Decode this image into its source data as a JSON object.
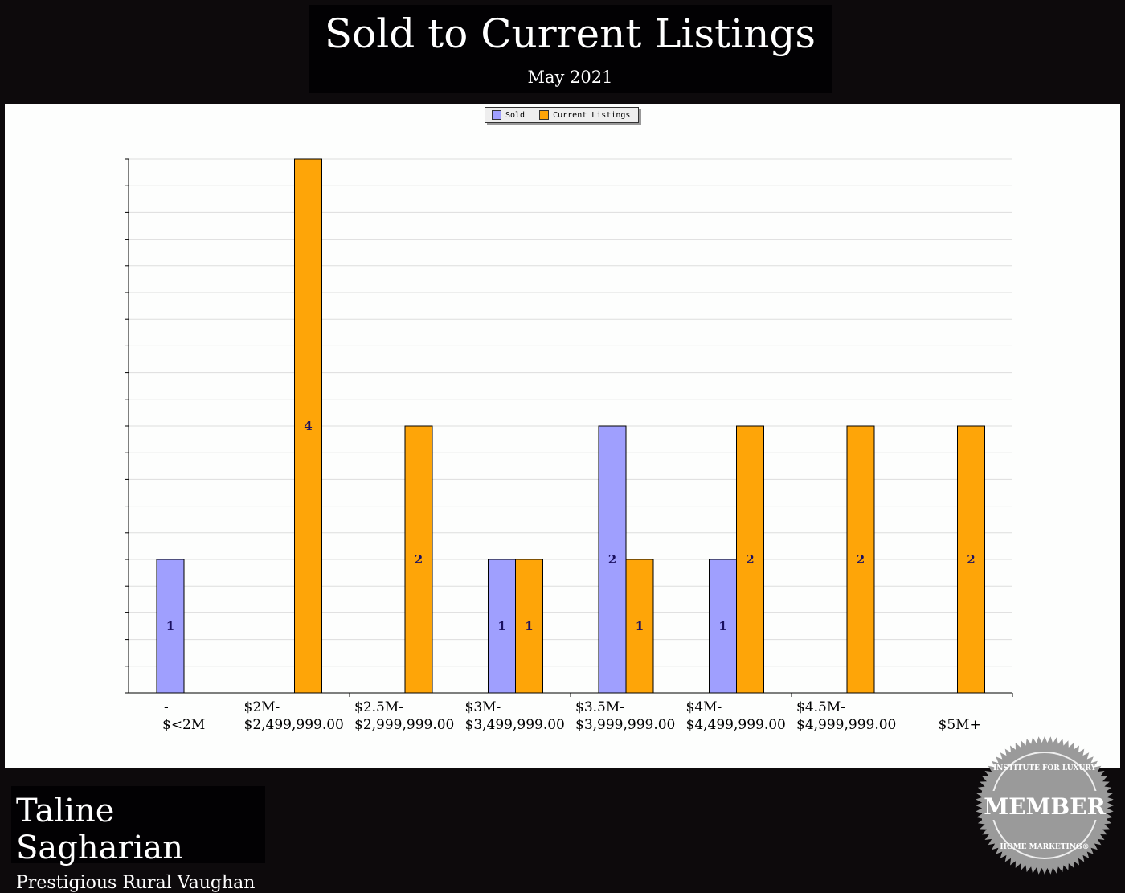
{
  "header": {
    "title": "Sold to Current Listings",
    "subtitle": "May 2021"
  },
  "footer": {
    "agent_name": "Taline Sagharian",
    "area": "Prestigious Rural Vaughan"
  },
  "badge": {
    "top_text": "INSTITUTE FOR LUXURY",
    "main_text": "MEMBER",
    "bottom_text": "HOME MARKETING®"
  },
  "chart_data": {
    "type": "bar",
    "title": "Sold to Current Listings",
    "subtitle": "May 2021",
    "categories": [
      [
        "-",
        "$<2M"
      ],
      [
        "$2M-",
        "$2,499,999.00"
      ],
      [
        "$2.5M-",
        "$2,999,999.00"
      ],
      [
        "$3M-",
        "$3,499,999.00"
      ],
      [
        "$3.5M-",
        "$3,999,999.00"
      ],
      [
        "$4M-",
        "$4,499,999.00"
      ],
      [
        "$4.5M-",
        "$4,999,999.00"
      ],
      [
        "",
        "$5M+"
      ]
    ],
    "series": [
      {
        "name": "Sold",
        "color": "#9f9ffe",
        "values": [
          1,
          0,
          0,
          1,
          2,
          1,
          0,
          0
        ]
      },
      {
        "name": "Current Listings",
        "color": "#fea508",
        "values": [
          0,
          4,
          2,
          1,
          1,
          2,
          2,
          2
        ]
      }
    ],
    "ylim": [
      0,
      4
    ],
    "grid": true,
    "legend": "top-center",
    "y_tick_labels_shown": false,
    "data_labels": true
  }
}
